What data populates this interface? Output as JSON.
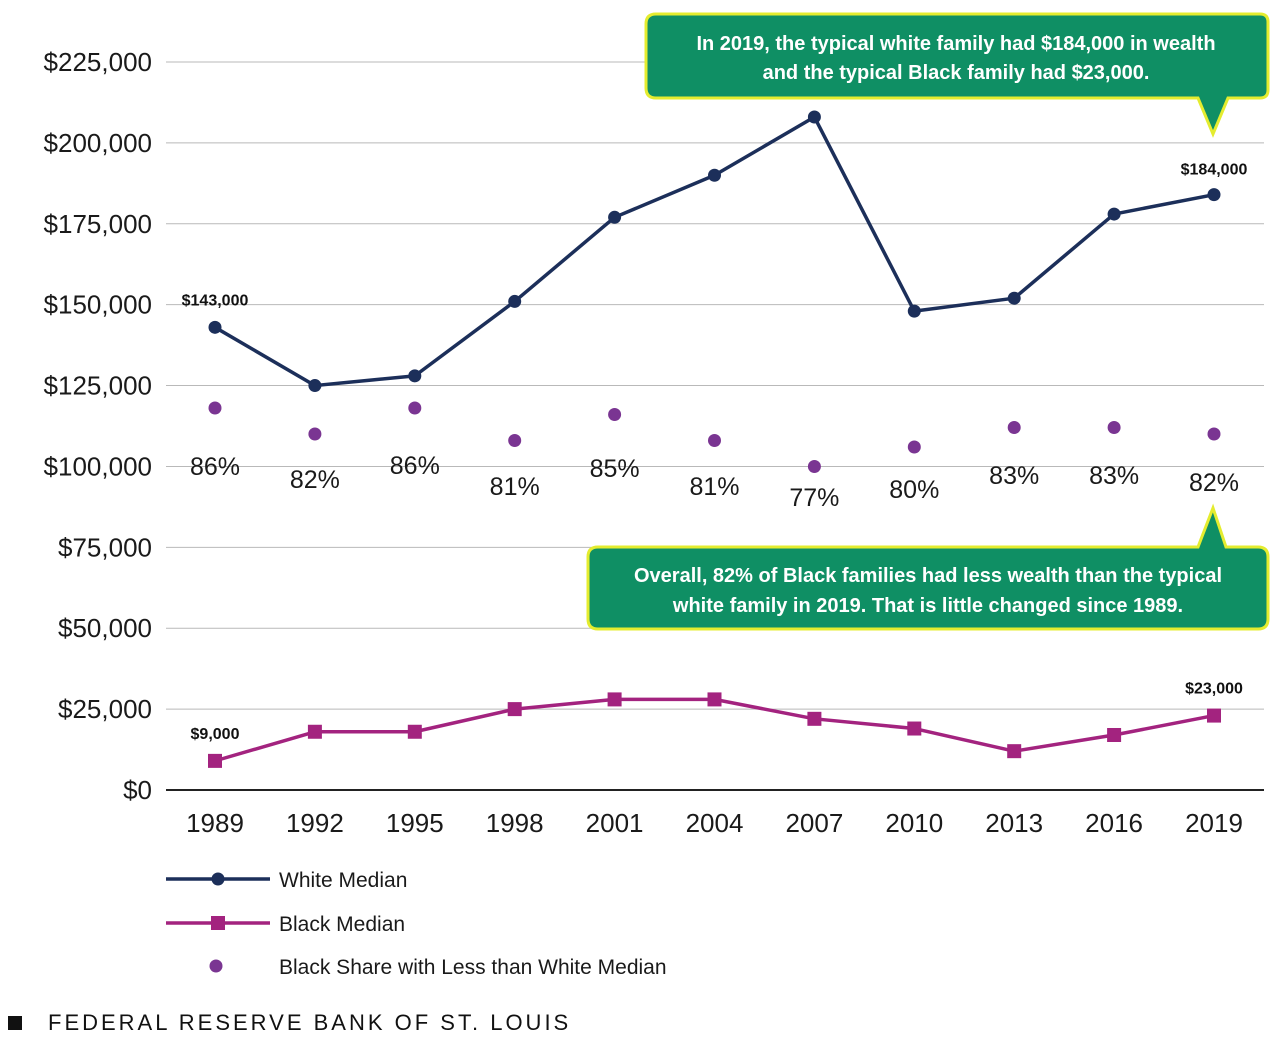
{
  "chart_data": {
    "type": "line",
    "categories": [
      "1989",
      "1992",
      "1995",
      "1998",
      "2001",
      "2004",
      "2007",
      "2010",
      "2013",
      "2016",
      "2019"
    ],
    "ylim": [
      0,
      225000
    ],
    "yticks": [
      0,
      25000,
      50000,
      75000,
      100000,
      125000,
      150000,
      175000,
      200000,
      225000
    ],
    "ytick_labels": [
      "$0",
      "$25,000",
      "$50,000",
      "$75,000",
      "$100,000",
      "$125,000",
      "$150,000",
      "$175,000",
      "$200,000",
      "$225,000"
    ],
    "grid": true,
    "series": [
      {
        "name": "White Median",
        "color": "#1c2f5a",
        "marker": "circle",
        "values": [
          143000,
          125000,
          128000,
          151000,
          177000,
          190000,
          208000,
          148000,
          152000,
          178000,
          184000
        ]
      },
      {
        "name": "Black Median",
        "color": "#a3237f",
        "marker": "square",
        "values": [
          9000,
          18000,
          18000,
          25000,
          28000,
          28000,
          22000,
          19000,
          12000,
          17000,
          23000
        ]
      }
    ],
    "share": {
      "name": "Black Share with Less than White Median",
      "color": "#7a3592",
      "values": [
        86,
        82,
        86,
        81,
        85,
        81,
        77,
        80,
        83,
        83,
        82
      ],
      "labels": [
        "86%",
        "82%",
        "86%",
        "81%",
        "85%",
        "81%",
        "77%",
        "80%",
        "83%",
        "83%",
        "82%"
      ]
    },
    "data_labels": {
      "white_first": "$143,000",
      "white_last": "$184,000",
      "black_first": "$9,000",
      "black_last": "$23,000"
    },
    "callouts": [
      {
        "lines": [
          "In 2019, the typical white family had $184,000 in wealth",
          "and the typical Black family had $23,000."
        ]
      },
      {
        "lines": [
          "Overall, 82% of Black families had less wealth than the typical",
          "white family in 2019. That is little changed since 1989."
        ]
      }
    ],
    "callout_fill": "#0f8f64",
    "callout_border": "#e4ec2f"
  },
  "footer": {
    "source": "FEDERAL RESERVE BANK OF ST. LOUIS"
  }
}
